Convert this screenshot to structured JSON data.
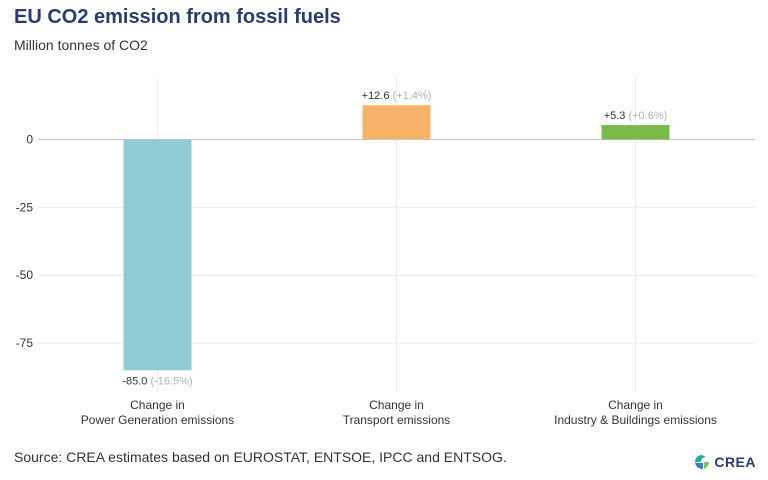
{
  "title": "EU CO2 emission from fossil fuels",
  "subtitle": "Million tonnes of CO2",
  "source": "Source: CREA estimates based on EUROSTAT, ENTSOE, IPCC and ENTSOG.",
  "logo": {
    "text": "CREA",
    "icon": "crea-logo-icon"
  },
  "chart_data": {
    "type": "bar",
    "title": "EU CO2 emission from fossil fuels",
    "subtitle": "Million tonnes of CO2",
    "categories": [
      [
        "Change in",
        "Power Generation emissions"
      ],
      [
        "Change in",
        "Transport emissions"
      ],
      [
        "Change in",
        "Industry & Buildings emissions"
      ]
    ],
    "values": [
      -85.0,
      12.6,
      5.3
    ],
    "value_labels": [
      "-85.0",
      "+12.6",
      "+5.3"
    ],
    "pct_labels": [
      "(-16.5%)",
      "(+1.4%)",
      "(+0.6%)"
    ],
    "colors": [
      "#90cbd3",
      "#f7b26a",
      "#78bb4b"
    ],
    "yticks": [
      0,
      -25,
      -50,
      -75
    ],
    "ylim": [
      -93,
      23
    ],
    "grid": true
  }
}
